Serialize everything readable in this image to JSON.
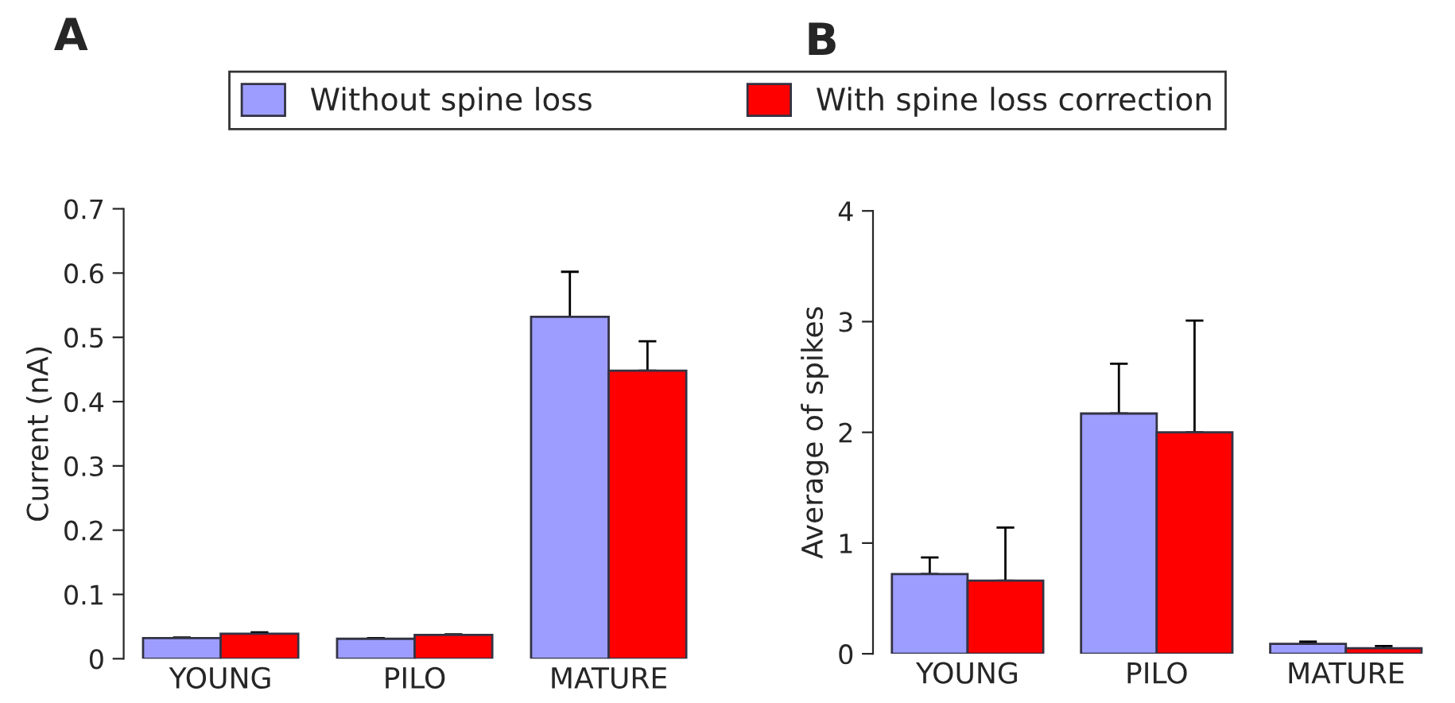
{
  "chart_data": [
    {
      "type": "bar",
      "title": "A",
      "ylabel": "Current (nA)",
      "categories": [
        "YOUNG",
        "PILO",
        "MATURE"
      ],
      "ylim": [
        0,
        0.7
      ],
      "yticks": [
        0,
        0.1,
        0.2,
        0.3,
        0.4,
        0.5,
        0.6,
        0.7
      ],
      "grid": false,
      "legend": "top",
      "series": [
        {
          "name": "Without spine loss",
          "color": "#9d9dff",
          "values": [
            0.032,
            0.031,
            0.532
          ],
          "errors": [
            [
              0.032,
              0.033
            ],
            [
              0.031,
              0.032
            ],
            [
              0.532,
              0.602
            ]
          ]
        },
        {
          "name": "With spine loss correction",
          "color": "#ff0000",
          "values": [
            0.039,
            0.037,
            0.448
          ],
          "errors": [
            [
              0.039,
              0.041
            ],
            [
              0.037,
              0.038
            ],
            [
              0.448,
              0.494
            ]
          ]
        }
      ]
    },
    {
      "type": "bar",
      "title": "B",
      "ylabel": "Average of spikes",
      "categories": [
        "YOUNG",
        "PILO",
        "MATURE"
      ],
      "ylim": [
        0,
        4
      ],
      "yticks": [
        0,
        1,
        2,
        3,
        4
      ],
      "grid": false,
      "series": [
        {
          "color": "#9d9dff",
          "values": [
            0.72,
            2.17,
            0.09
          ],
          "errors": [
            [
              0.72,
              0.87
            ],
            [
              2.17,
              2.62
            ],
            [
              0.09,
              0.11
            ]
          ]
        },
        {
          "color": "#ff0000",
          "values": [
            0.66,
            2.0,
            0.05
          ],
          "errors": [
            [
              0.66,
              1.14
            ],
            [
              2.0,
              3.01
            ],
            [
              0.05,
              0.07
            ]
          ]
        }
      ]
    }
  ]
}
